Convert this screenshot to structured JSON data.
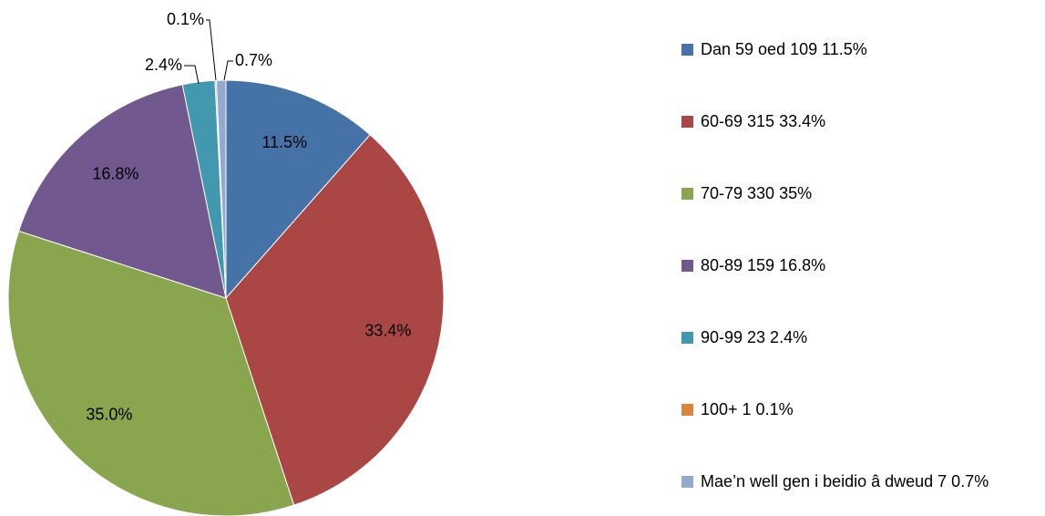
{
  "chart_data": {
    "type": "pie",
    "categories": [
      "Dan 59 oed  109  11.5%",
      "60-69  315  33.4%",
      "70-79  330  35%",
      "80-89  159  16.8%",
      "90-99  23  2.4%",
      "100+  1  0.1%",
      "Mae’n well gen i beidio â dweud  7  0.7%"
    ],
    "values": [
      11.5,
      33.4,
      35.0,
      16.8,
      2.4,
      0.1,
      0.7
    ],
    "value_labels": [
      "11.5%",
      "33.4%",
      "35.0%",
      "16.8%",
      "2.4%",
      "0.1%",
      "0.7%"
    ],
    "colors": [
      "#4572A7",
      "#AA4643",
      "#89A54E",
      "#71588F",
      "#4198AF",
      "#DB843D",
      "#93A9CF"
    ],
    "legend": "right"
  }
}
